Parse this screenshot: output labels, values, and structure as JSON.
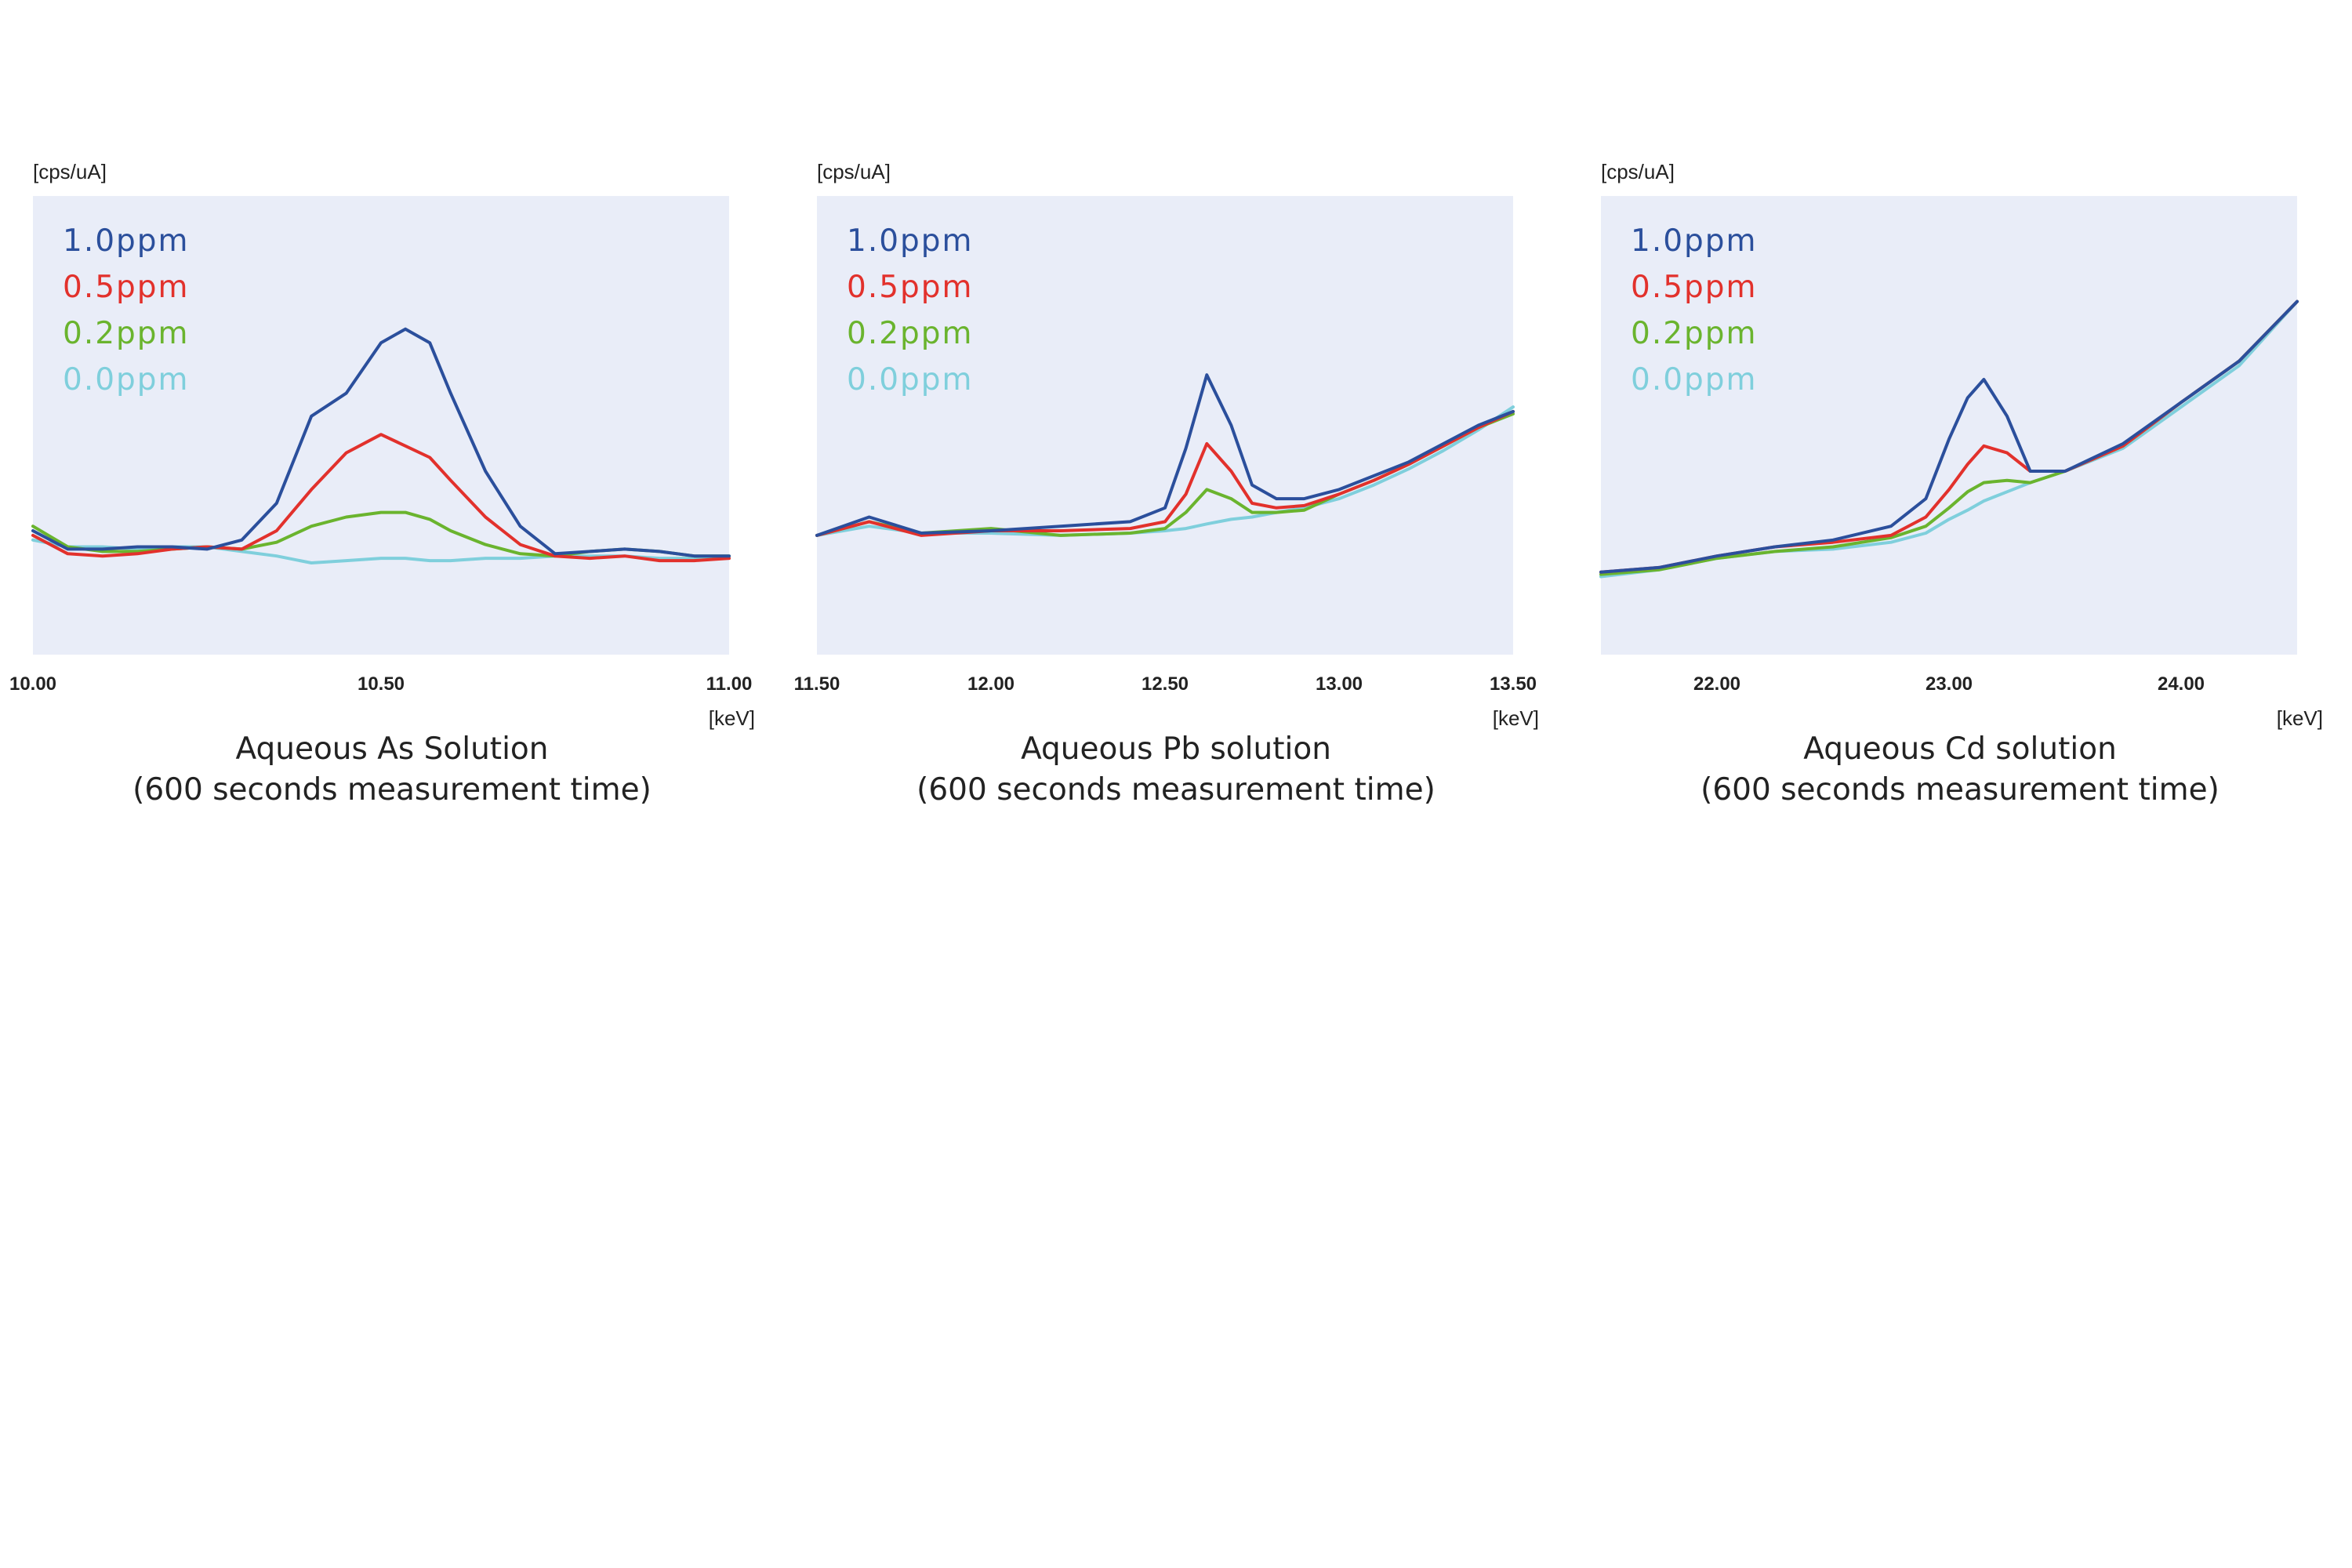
{
  "chart_data": [
    {
      "type": "line",
      "ylabel": "[cps/uA]",
      "xlabel": "[keV]",
      "title_line1": "Aqueous As Solution",
      "title_line2": "(600 seconds measurement time)",
      "xlim": [
        10.0,
        11.0
      ],
      "ylim": [
        0,
        100
      ],
      "x_ticks": [
        "10.00",
        "10.50",
        "11.00"
      ],
      "x_tick_values": [
        10.0,
        10.5,
        11.0
      ],
      "legend_position": "top-left",
      "x": [
        10.0,
        10.05,
        10.1,
        10.15,
        10.2,
        10.25,
        10.3,
        10.35,
        10.4,
        10.45,
        10.5,
        10.535,
        10.57,
        10.6,
        10.65,
        10.7,
        10.75,
        10.8,
        10.85,
        10.9,
        10.95,
        11.0
      ],
      "series": [
        {
          "name": "1.0ppm",
          "color": "#2b4f9c",
          "values": [
            27,
            23,
            23,
            23.5,
            23.5,
            23,
            25,
            33,
            52,
            57,
            68,
            71,
            68,
            57,
            40,
            28,
            22,
            22.5,
            23,
            22.5,
            21.5,
            21.5
          ]
        },
        {
          "name": "0.5ppm",
          "color": "#e2312c",
          "values": [
            26,
            22,
            21.5,
            22,
            23,
            23.5,
            23,
            27,
            36,
            44,
            48,
            45.5,
            43,
            38,
            30,
            24,
            21.5,
            21,
            21.5,
            20.5,
            20.5,
            21
          ]
        },
        {
          "name": "0.2ppm",
          "color": "#6ab42e",
          "values": [
            28,
            23.5,
            22.5,
            22.5,
            23,
            23.5,
            23,
            24.5,
            28,
            30,
            31,
            31,
            29.5,
            27,
            24,
            22,
            21.5,
            22.5,
            23,
            22.5,
            21.5,
            21.5
          ]
        },
        {
          "name": "0.0ppm",
          "color": "#7fcfdc",
          "values": [
            25,
            23.5,
            23.5,
            23,
            23.5,
            23.5,
            22.5,
            21.5,
            20,
            20.5,
            21,
            21,
            20.5,
            20.5,
            21,
            21,
            21.5,
            21.5,
            21.5,
            21,
            21,
            21
          ]
        }
      ]
    },
    {
      "type": "line",
      "ylabel": "[cps/uA]",
      "xlabel": "[keV]",
      "title_line1": "Aqueous Pb solution",
      "title_line2": "(600 seconds measurement time)",
      "xlim": [
        11.5,
        13.5
      ],
      "ylim": [
        0,
        100
      ],
      "x_ticks": [
        "11.50",
        "12.00",
        "12.50",
        "13.00",
        "13.50"
      ],
      "x_tick_values": [
        11.5,
        12.0,
        12.5,
        13.0,
        13.5
      ],
      "legend_position": "top-left",
      "x": [
        11.5,
        11.65,
        11.8,
        12.0,
        12.2,
        12.4,
        12.5,
        12.56,
        12.62,
        12.69,
        12.75,
        12.82,
        12.9,
        13.0,
        13.1,
        13.2,
        13.3,
        13.4,
        13.5
      ],
      "series": [
        {
          "name": "1.0ppm",
          "color": "#2b4f9c",
          "values": [
            26,
            30,
            26.5,
            27,
            28,
            29,
            32,
            45,
            61,
            50,
            37,
            34,
            34,
            36,
            39,
            42,
            46,
            50,
            53
          ]
        },
        {
          "name": "0.5ppm",
          "color": "#e2312c",
          "values": [
            26,
            29,
            26,
            27,
            27,
            27.5,
            29,
            35,
            46,
            40,
            33,
            32,
            32.5,
            35,
            38,
            41.5,
            45.5,
            49.5,
            53
          ]
        },
        {
          "name": "0.2ppm",
          "color": "#6ab42e",
          "values": [
            26,
            29,
            26.5,
            27.5,
            26,
            26.5,
            27.5,
            31,
            36,
            34,
            31,
            31,
            31.5,
            35,
            38,
            41.5,
            45.5,
            49.5,
            52.5
          ]
        },
        {
          "name": "0.0ppm",
          "color": "#7fcfdc",
          "values": [
            26,
            28,
            26.5,
            26.5,
            26,
            26.5,
            27,
            27.5,
            28.5,
            29.5,
            30,
            31,
            32,
            34,
            37,
            40.5,
            44.5,
            49,
            54
          ]
        }
      ]
    },
    {
      "type": "line",
      "ylabel": "[cps/uA]",
      "xlabel": "[keV]",
      "title_line1": "Aqueous Cd solution",
      "title_line2": "(600 seconds measurement time)",
      "xlim": [
        21.5,
        24.5
      ],
      "ylim": [
        0,
        100
      ],
      "x_ticks": [
        "22.00",
        "23.00",
        "24.00"
      ],
      "x_tick_values": [
        22.0,
        23.0,
        24.0
      ],
      "legend_position": "top-left",
      "x": [
        21.5,
        21.75,
        22.0,
        22.25,
        22.5,
        22.75,
        22.9,
        23.0,
        23.08,
        23.15,
        23.25,
        23.35,
        23.5,
        23.75,
        24.0,
        24.25,
        24.5
      ],
      "series": [
        {
          "name": "1.0ppm",
          "color": "#2b4f9c",
          "values": [
            18,
            19,
            21.5,
            23.5,
            25,
            28,
            34,
            47,
            56,
            60,
            52,
            40,
            40,
            46,
            55,
            64,
            77
          ]
        },
        {
          "name": "0.5ppm",
          "color": "#e2312c",
          "values": [
            18,
            19,
            21.5,
            23.5,
            24.5,
            26,
            30,
            36,
            41.5,
            45.5,
            44,
            40,
            40,
            45.5,
            55,
            64,
            77
          ]
        },
        {
          "name": "0.2ppm",
          "color": "#6ab42e",
          "values": [
            17.5,
            18.5,
            21,
            22.5,
            23.5,
            25.5,
            28,
            32,
            35.5,
            37.5,
            38,
            37.5,
            40,
            45.5,
            55,
            64,
            77
          ]
        },
        {
          "name": "0.0ppm",
          "color": "#7fcfdc",
          "values": [
            17,
            18.5,
            21,
            22.5,
            23,
            24.5,
            26.5,
            29.5,
            31.5,
            33.5,
            35.5,
            37.5,
            40,
            45,
            54,
            63,
            77
          ]
        }
      ]
    }
  ]
}
